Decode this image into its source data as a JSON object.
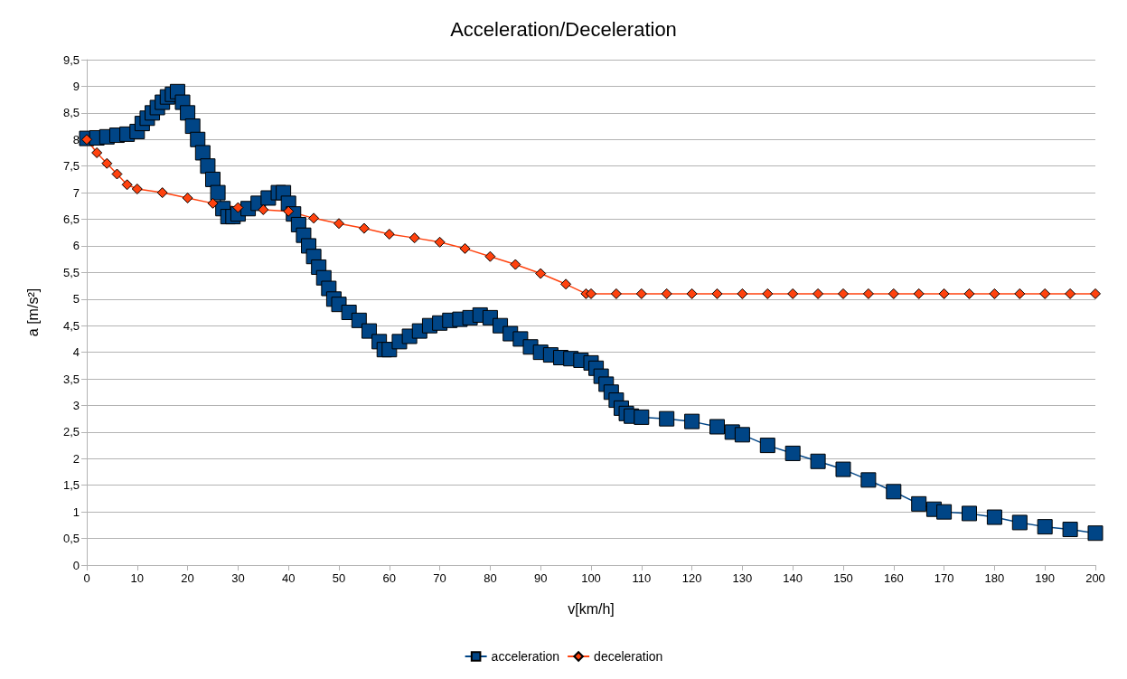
{
  "chart_data": {
    "type": "line",
    "title": "Acceleration/Deceleration",
    "xlabel": "v[km/h]",
    "ylabel": "a [m/s²]",
    "xlim": [
      0,
      200
    ],
    "xticks": [
      0,
      10,
      20,
      30,
      40,
      50,
      60,
      70,
      80,
      90,
      100,
      110,
      120,
      130,
      140,
      150,
      160,
      170,
      180,
      190,
      200
    ],
    "ylim": [
      0,
      9.5
    ],
    "yticks": [
      0,
      {
        "value": 0.5,
        "label": "0,5"
      },
      1,
      {
        "value": 1.5,
        "label": "1,5"
      },
      2,
      {
        "value": 2.5,
        "label": "2,5"
      },
      3,
      {
        "value": 3.5,
        "label": "3,5"
      },
      4,
      {
        "value": 4.5,
        "label": "4,5"
      },
      5,
      {
        "value": 5.5,
        "label": "5,5"
      },
      6,
      {
        "value": 6.5,
        "label": "6,5"
      },
      7,
      {
        "value": 7.5,
        "label": "7,5"
      },
      8,
      {
        "value": 8.5,
        "label": "8,5"
      },
      9,
      {
        "value": 9.5,
        "label": "9,5"
      }
    ],
    "grid": "y",
    "legend": "bottom",
    "line_style": "solid",
    "series": [
      {
        "name": "acceleration",
        "color": "#004586",
        "marker": "square",
        "x": [
          0,
          2,
          4,
          6,
          8,
          10,
          11,
          12,
          13,
          14,
          15,
          16,
          17,
          18,
          19,
          20,
          21,
          22,
          23,
          24,
          25,
          26,
          27,
          28,
          29,
          30,
          32,
          34,
          36,
          38,
          39,
          40,
          41,
          42,
          43,
          44,
          45,
          46,
          47,
          48,
          49,
          50,
          52,
          54,
          56,
          58,
          59,
          60,
          62,
          64,
          66,
          68,
          70,
          72,
          74,
          76,
          78,
          80,
          82,
          84,
          86,
          88,
          90,
          92,
          94,
          96,
          98,
          100,
          101,
          102,
          103,
          104,
          105,
          106,
          107,
          108,
          110,
          115,
          120,
          125,
          128,
          130,
          135,
          140,
          145,
          150,
          155,
          160,
          165,
          168,
          170,
          175,
          180,
          185,
          190,
          195,
          200
        ],
        "values": [
          8.02,
          8.03,
          8.05,
          8.08,
          8.1,
          8.15,
          8.3,
          8.4,
          8.5,
          8.6,
          8.7,
          8.8,
          8.85,
          8.9,
          8.7,
          8.5,
          8.25,
          8.0,
          7.75,
          7.5,
          7.25,
          7.0,
          6.7,
          6.55,
          6.55,
          6.6,
          6.7,
          6.8,
          6.9,
          7.0,
          7.0,
          6.8,
          6.6,
          6.4,
          6.2,
          6.0,
          5.8,
          5.6,
          5.4,
          5.2,
          5.0,
          4.9,
          4.75,
          4.6,
          4.4,
          4.2,
          4.05,
          4.05,
          4.2,
          4.3,
          4.4,
          4.5,
          4.55,
          4.6,
          4.62,
          4.65,
          4.7,
          4.65,
          4.5,
          4.35,
          4.25,
          4.1,
          4.0,
          3.95,
          3.9,
          3.88,
          3.85,
          3.8,
          3.7,
          3.55,
          3.4,
          3.25,
          3.1,
          2.95,
          2.85,
          2.8,
          2.78,
          2.75,
          2.7,
          2.6,
          2.5,
          2.45,
          2.25,
          2.1,
          1.95,
          1.8,
          1.6,
          1.38,
          1.15,
          1.05,
          1.0,
          0.97,
          0.9,
          0.8,
          0.72,
          0.67,
          0.6
        ]
      },
      {
        "name": "deceleration",
        "color": "#ff420e",
        "marker": "diamond",
        "x": [
          0,
          2,
          4,
          6,
          8,
          10,
          15,
          20,
          25,
          30,
          35,
          40,
          45,
          50,
          55,
          60,
          65,
          70,
          75,
          80,
          85,
          90,
          95,
          99,
          100,
          105,
          110,
          115,
          120,
          125,
          130,
          135,
          140,
          145,
          150,
          155,
          160,
          165,
          170,
          175,
          180,
          185,
          190,
          195,
          200
        ],
        "values": [
          8.0,
          7.75,
          7.55,
          7.35,
          7.15,
          7.07,
          7.0,
          6.9,
          6.8,
          6.72,
          6.68,
          6.65,
          6.52,
          6.42,
          6.33,
          6.22,
          6.15,
          6.07,
          5.95,
          5.8,
          5.65,
          5.48,
          5.28,
          5.1,
          5.1,
          5.1,
          5.1,
          5.1,
          5.1,
          5.1,
          5.1,
          5.1,
          5.1,
          5.1,
          5.1,
          5.1,
          5.1,
          5.1,
          5.1,
          5.1,
          5.1,
          5.1,
          5.1,
          5.1,
          5.1
        ]
      }
    ]
  }
}
